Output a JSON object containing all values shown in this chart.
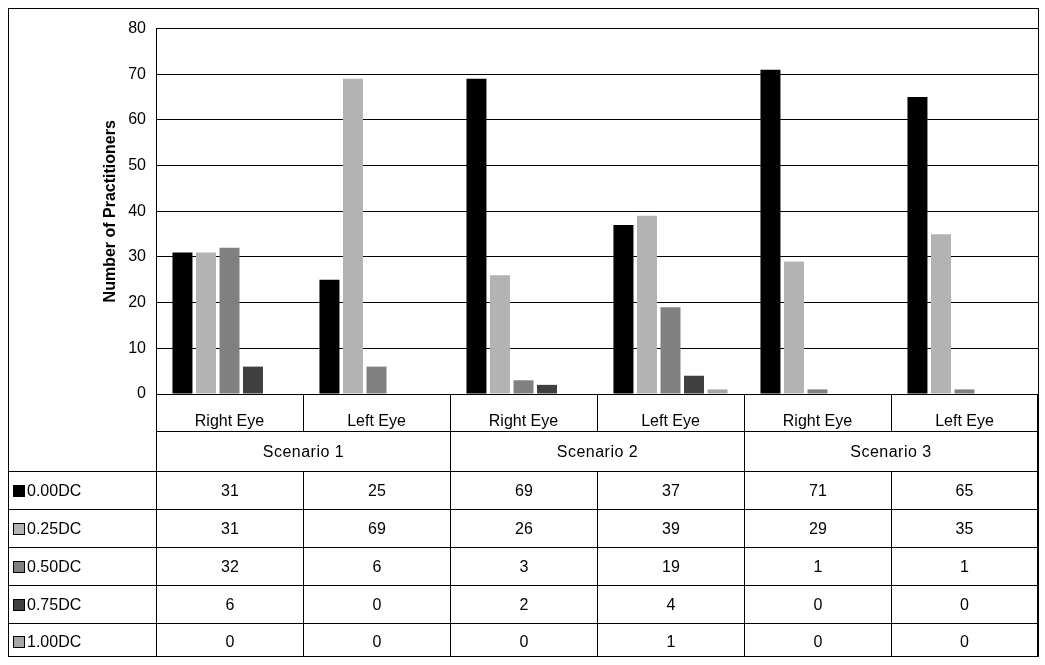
{
  "chart_data": {
    "type": "bar",
    "ylabel": "Number of Practitioners",
    "categories": [
      "Right Eye",
      "Left Eye",
      "Right Eye",
      "Left Eye",
      "Right Eye",
      "Left Eye"
    ],
    "annotations": [
      "Scenario 1",
      "Scenario 2",
      "Scenario 3"
    ],
    "series": [
      {
        "name": "0.00DC",
        "color": "#000000",
        "values": [
          31,
          25,
          69,
          37,
          71,
          65
        ]
      },
      {
        "name": "0.25DC",
        "color": "#b3b3b3",
        "values": [
          31,
          69,
          26,
          39,
          29,
          35
        ]
      },
      {
        "name": "0.50DC",
        "color": "#808080",
        "values": [
          32,
          6,
          3,
          19,
          1,
          1
        ]
      },
      {
        "name": "0.75DC",
        "color": "#404040",
        "values": [
          6,
          0,
          2,
          4,
          0,
          0
        ]
      },
      {
        "name": "1.00DC",
        "color": "#a6a6a6",
        "values": [
          0,
          0,
          0,
          1,
          0,
          0
        ]
      }
    ],
    "ylim": [
      0,
      80
    ],
    "yticks": [
      0,
      10,
      20,
      30,
      40,
      50,
      60,
      70,
      80
    ],
    "grid": "y",
    "legend": "bottom",
    "data_labels": true
  }
}
